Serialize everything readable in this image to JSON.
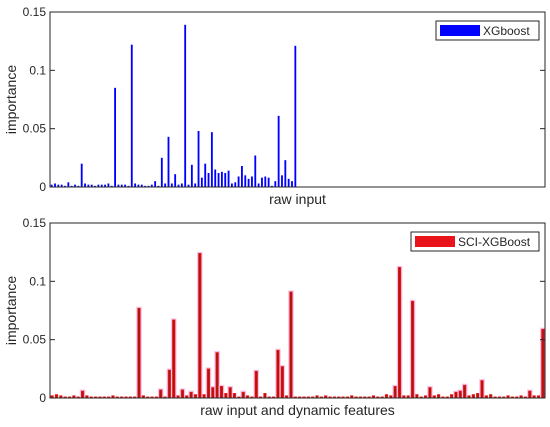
{
  "chart_data": [
    {
      "type": "bar",
      "title": "",
      "xlabel": "raw input",
      "ylabel": "importance",
      "ylim": [
        0,
        0.15
      ],
      "yticks": [
        0,
        0.05,
        0.1,
        0.15
      ],
      "ytick_labels": [
        "0",
        "0.05",
        "0.1",
        "0.15"
      ],
      "grid": false,
      "legend_position": "top-right",
      "series": [
        {
          "name": "XGboost",
          "color": "#0000ff",
          "values": [
            0.002,
            0.003,
            0.002,
            0.002,
            0.001,
            0.004,
            0.001,
            0.002,
            0.001,
            0.02,
            0.003,
            0.002,
            0.002,
            0.001,
            0.002,
            0.002,
            0.002,
            0.003,
            0.001,
            0.085,
            0.002,
            0.002,
            0.002,
            0.001,
            0.122,
            0.003,
            0.002,
            0.002,
            0.001,
            0.001,
            0.002,
            0.005,
            0.001,
            0.025,
            0.003,
            0.043,
            0.003,
            0.011,
            0.002,
            0.003,
            0.139,
            0.002,
            0.019,
            0.003,
            0.048,
            0.008,
            0.02,
            0.012,
            0.047,
            0.015,
            0.012,
            0.013,
            0.012,
            0.014,
            0.003,
            0.004,
            0.009,
            0.018,
            0.01,
            0.007,
            0.009,
            0.027,
            0.003,
            0.008,
            0.009,
            0.008,
            0.001,
            0.005,
            0.061,
            0.01,
            0.023,
            0.007,
            0.005,
            0.121
          ]
        }
      ]
    },
    {
      "type": "bar",
      "title": "",
      "xlabel": "raw input and dynamic features",
      "ylabel": "importance",
      "ylim": [
        0,
        0.15
      ],
      "yticks": [
        0,
        0.05,
        0.1,
        0.15
      ],
      "ytick_labels": [
        "0",
        "0.05",
        "0.1",
        "0.15"
      ],
      "grid": false,
      "legend_position": "top-right",
      "series": [
        {
          "name": "SCI-XGBoost",
          "color": "#ff0000",
          "values": [
            0.002,
            0.003,
            0.002,
            0.001,
            0.001,
            0.002,
            0.001,
            0.006,
            0.002,
            0.001,
            0.001,
            0.001,
            0.001,
            0.001,
            0.002,
            0.001,
            0.001,
            0.001,
            0.001,
            0.001,
            0.077,
            0.002,
            0.001,
            0.001,
            0.001,
            0.007,
            0.001,
            0.024,
            0.067,
            0.002,
            0.007,
            0.002,
            0.005,
            0.003,
            0.124,
            0.003,
            0.025,
            0.009,
            0.039,
            0.01,
            0.004,
            0.009,
            0.004,
            0.001,
            0.005,
            0.002,
            0.001,
            0.023,
            0.001,
            0.004,
            0.001,
            0.001,
            0.041,
            0.027,
            0.002,
            0.091,
            0.001,
            0.001,
            0.001,
            0.001,
            0.001,
            0.002,
            0.001,
            0.002,
            0.001,
            0.001,
            0.001,
            0.001,
            0.001,
            0.002,
            0.001,
            0.001,
            0.001,
            0.001,
            0.002,
            0.001,
            0.001,
            0.003,
            0.002,
            0.01,
            0.112,
            0.002,
            0.002,
            0.083,
            0.003,
            0.001,
            0.002,
            0.009,
            0.002,
            0.003,
            0.001,
            0.001,
            0.003,
            0.005,
            0.006,
            0.011,
            0.002,
            0.003,
            0.004,
            0.015,
            0.002,
            0.003,
            0.001,
            0.001,
            0.001,
            0.002,
            0.001,
            0.001,
            0.002,
            0.001,
            0.006,
            0.002,
            0.002,
            0.059
          ]
        }
      ]
    }
  ]
}
